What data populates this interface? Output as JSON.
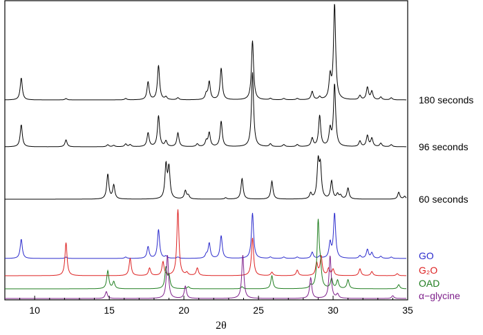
{
  "chart_data": {
    "type": "line",
    "title": "",
    "xlabel": "2θ",
    "ylabel": "",
    "xlim": [
      8,
      35
    ],
    "x_ticks": [
      10,
      15,
      20,
      25,
      30,
      35
    ],
    "x_tick_labels": [
      "10",
      "15",
      "20",
      "25",
      "30",
      "35"
    ],
    "grid": false,
    "legend": "labels at right end of each trace",
    "series": [
      {
        "name": "180 seconds",
        "color": "#000000",
        "peaks": [
          [
            9.1,
            32
          ],
          [
            12.1,
            2
          ],
          [
            16.1,
            2
          ],
          [
            17.6,
            26
          ],
          [
            18.3,
            50
          ],
          [
            18.8,
            4
          ],
          [
            19.6,
            3
          ],
          [
            21.5,
            8
          ],
          [
            21.7,
            26
          ],
          [
            22.5,
            46
          ],
          [
            24.6,
            86
          ],
          [
            25.8,
            2
          ],
          [
            26.7,
            2
          ],
          [
            27.6,
            2
          ],
          [
            28.6,
            12
          ],
          [
            29.1,
            4
          ],
          [
            29.8,
            32
          ],
          [
            30.1,
            138
          ],
          [
            31.8,
            6
          ],
          [
            32.3,
            18
          ],
          [
            32.6,
            12
          ],
          [
            33.2,
            4
          ],
          [
            33.9,
            3
          ]
        ]
      },
      {
        "name": "96 seconds",
        "color": "#000000",
        "peaks": [
          [
            9.1,
            32
          ],
          [
            12.1,
            10
          ],
          [
            14.9,
            3
          ],
          [
            15.3,
            2
          ],
          [
            16.1,
            4
          ],
          [
            16.4,
            3
          ],
          [
            17.6,
            20
          ],
          [
            18.3,
            45
          ],
          [
            18.8,
            8
          ],
          [
            19.6,
            20
          ],
          [
            20.9,
            4
          ],
          [
            21.5,
            8
          ],
          [
            21.7,
            20
          ],
          [
            22.5,
            37
          ],
          [
            24.6,
            108
          ],
          [
            25.8,
            4
          ],
          [
            26.7,
            3
          ],
          [
            27.6,
            3
          ],
          [
            28.6,
            12
          ],
          [
            29.1,
            45
          ],
          [
            29.8,
            24
          ],
          [
            30.1,
            90
          ],
          [
            31.8,
            8
          ],
          [
            32.3,
            16
          ],
          [
            32.6,
            12
          ],
          [
            33.2,
            5
          ],
          [
            33.9,
            3
          ]
        ]
      },
      {
        "name": "60 seconds",
        "color": "#000000",
        "peaks": [
          [
            14.9,
            36
          ],
          [
            15.3,
            20
          ],
          [
            18.8,
            48
          ],
          [
            19.0,
            44
          ],
          [
            20.1,
            12
          ],
          [
            20.3,
            5
          ],
          [
            22.8,
            2
          ],
          [
            23.9,
            30
          ],
          [
            25.9,
            26
          ],
          [
            28.5,
            8
          ],
          [
            29.0,
            52
          ],
          [
            29.15,
            44
          ],
          [
            29.9,
            26
          ],
          [
            30.3,
            7
          ],
          [
            30.5,
            5
          ],
          [
            31.0,
            16
          ],
          [
            34.4,
            10
          ],
          [
            34.8,
            4
          ]
        ]
      },
      {
        "name": "GO",
        "color": "#2a2acc",
        "peaks": [
          [
            9.1,
            28
          ],
          [
            12.1,
            2
          ],
          [
            16.1,
            2
          ],
          [
            17.6,
            17
          ],
          [
            18.3,
            42
          ],
          [
            18.8,
            3
          ],
          [
            19.6,
            2
          ],
          [
            21.5,
            5
          ],
          [
            21.7,
            22
          ],
          [
            22.5,
            33
          ],
          [
            24.6,
            66
          ],
          [
            25.8,
            2
          ],
          [
            26.7,
            2
          ],
          [
            27.6,
            2
          ],
          [
            28.6,
            9
          ],
          [
            29.1,
            3
          ],
          [
            29.8,
            22
          ],
          [
            30.1,
            65
          ],
          [
            31.8,
            4
          ],
          [
            32.3,
            13
          ],
          [
            32.6,
            8
          ],
          [
            33.2,
            3
          ],
          [
            33.9,
            2
          ]
        ]
      },
      {
        "name": "G₂O",
        "color": "#dd2020",
        "peaks": [
          [
            12.1,
            48
          ],
          [
            16.4,
            25
          ],
          [
            17.7,
            11
          ],
          [
            18.6,
            20
          ],
          [
            19.6,
            96
          ],
          [
            20.2,
            4
          ],
          [
            20.9,
            11
          ],
          [
            24.6,
            55
          ],
          [
            25.9,
            5
          ],
          [
            27.6,
            8
          ],
          [
            28.9,
            18
          ],
          [
            29.2,
            28
          ],
          [
            29.7,
            10
          ],
          [
            30.0,
            9
          ],
          [
            31.8,
            10
          ],
          [
            32.6,
            6
          ],
          [
            34.3,
            3
          ]
        ]
      },
      {
        "name": "OAD",
        "color": "#1e7d1e",
        "peaks": [
          [
            14.9,
            26
          ],
          [
            15.3,
            10
          ],
          [
            18.8,
            30
          ],
          [
            19.0,
            18
          ],
          [
            20.3,
            3
          ],
          [
            23.9,
            3
          ],
          [
            25.9,
            19
          ],
          [
            28.5,
            4
          ],
          [
            29.0,
            95
          ],
          [
            29.15,
            25
          ],
          [
            29.9,
            14
          ],
          [
            30.3,
            12
          ],
          [
            31.0,
            13
          ],
          [
            34.4,
            6
          ]
        ]
      },
      {
        "name": "α−glycine",
        "color": "#7d1e8a",
        "peaks": [
          [
            14.8,
            10
          ],
          [
            18.9,
            63
          ],
          [
            20.1,
            18
          ],
          [
            23.95,
            63
          ],
          [
            28.5,
            30
          ],
          [
            29.8,
            62
          ],
          [
            30.3,
            6
          ],
          [
            34.0,
            4
          ]
        ]
      }
    ]
  }
}
